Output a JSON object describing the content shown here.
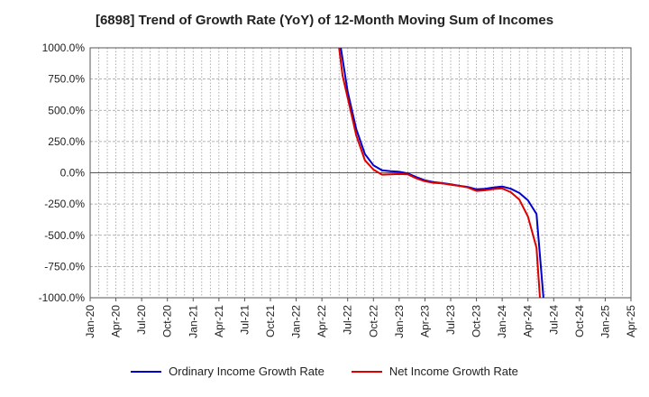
{
  "chart_data": {
    "type": "line",
    "title": "[6898]  Trend of Growth Rate (YoY) of 12-Month Moving Sum of Incomes",
    "xlabel": "",
    "ylabel": "",
    "ylim": [
      -1000,
      1000
    ],
    "y_ticks": [
      1000,
      750,
      500,
      250,
      0,
      -250,
      -500,
      -750,
      -1000
    ],
    "y_tick_labels": [
      "1000.0%",
      "750.0%",
      "500.0%",
      "250.0%",
      "0.0%",
      "-250.0%",
      "-500.0%",
      "-750.0%",
      "-1000.0%"
    ],
    "x_tick_labels": [
      "Jan-20",
      "Apr-20",
      "Jul-20",
      "Oct-20",
      "Jan-21",
      "Apr-21",
      "Jul-21",
      "Oct-21",
      "Jan-22",
      "Apr-22",
      "Jul-22",
      "Oct-22",
      "Jan-23",
      "Apr-23",
      "Jul-23",
      "Oct-23",
      "Jan-24",
      "Apr-24",
      "Jul-24",
      "Oct-24",
      "Jan-25",
      "Apr-25"
    ],
    "x_range_months": [
      0,
      63
    ],
    "grid": true,
    "legend_position": "bottom",
    "series": [
      {
        "name": "Ordinary Income Growth Rate",
        "color": "#0000cc",
        "points": [
          {
            "m": 29.2,
            "v": 1000
          },
          {
            "m": 30,
            "v": 650
          },
          {
            "m": 31,
            "v": 350
          },
          {
            "m": 32,
            "v": 150
          },
          {
            "m": 33,
            "v": 60
          },
          {
            "m": 34,
            "v": 20
          },
          {
            "m": 35,
            "v": 12
          },
          {
            "m": 36,
            "v": 8
          },
          {
            "m": 37,
            "v": -5
          },
          {
            "m": 38,
            "v": -35
          },
          {
            "m": 39,
            "v": -60
          },
          {
            "m": 40,
            "v": -75
          },
          {
            "m": 41,
            "v": -82
          },
          {
            "m": 42,
            "v": -92
          },
          {
            "m": 43,
            "v": -103
          },
          {
            "m": 44,
            "v": -113
          },
          {
            "m": 45,
            "v": -132
          },
          {
            "m": 46,
            "v": -128
          },
          {
            "m": 47,
            "v": -118
          },
          {
            "m": 48,
            "v": -110
          },
          {
            "m": 49,
            "v": -128
          },
          {
            "m": 50,
            "v": -162
          },
          {
            "m": 51,
            "v": -220
          },
          {
            "m": 52,
            "v": -330
          },
          {
            "m": 52.8,
            "v": -1000
          }
        ]
      },
      {
        "name": "Net Income Growth Rate",
        "color": "#dd0000",
        "points": [
          {
            "m": 29.0,
            "v": 1000
          },
          {
            "m": 29.4,
            "v": 780
          },
          {
            "m": 30,
            "v": 600
          },
          {
            "m": 31,
            "v": 300
          },
          {
            "m": 32,
            "v": 100
          },
          {
            "m": 33,
            "v": 25
          },
          {
            "m": 34,
            "v": -15
          },
          {
            "m": 35,
            "v": -12
          },
          {
            "m": 36,
            "v": -10
          },
          {
            "m": 37,
            "v": -12
          },
          {
            "m": 38,
            "v": -45
          },
          {
            "m": 39,
            "v": -68
          },
          {
            "m": 40,
            "v": -80
          },
          {
            "m": 41,
            "v": -85
          },
          {
            "m": 42,
            "v": -95
          },
          {
            "m": 43,
            "v": -105
          },
          {
            "m": 44,
            "v": -118
          },
          {
            "m": 45,
            "v": -145
          },
          {
            "m": 46,
            "v": -140
          },
          {
            "m": 47,
            "v": -130
          },
          {
            "m": 48,
            "v": -125
          },
          {
            "m": 49,
            "v": -155
          },
          {
            "m": 50,
            "v": -215
          },
          {
            "m": 51,
            "v": -350
          },
          {
            "m": 52,
            "v": -600
          },
          {
            "m": 52.4,
            "v": -1000
          }
        ]
      }
    ]
  }
}
